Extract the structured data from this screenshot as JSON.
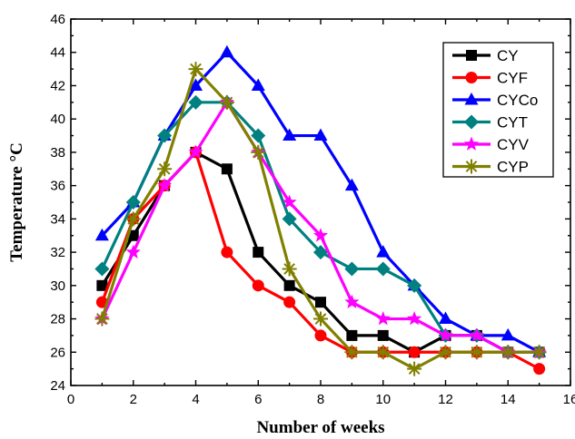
{
  "chart_data": {
    "type": "line",
    "xlabel": "Number of weeks",
    "ylabel": "Temperature °C",
    "xlim": [
      0,
      16
    ],
    "ylim": [
      24,
      46
    ],
    "xticks": [
      0,
      2,
      4,
      6,
      8,
      10,
      12,
      14,
      16
    ],
    "yticks": [
      24,
      26,
      28,
      30,
      32,
      34,
      36,
      38,
      40,
      42,
      44,
      46
    ],
    "grid": false,
    "legend_position": "top-right",
    "x": [
      1,
      2,
      3,
      4,
      5,
      6,
      7,
      8,
      9,
      10,
      11,
      12,
      13,
      14,
      15
    ],
    "series": [
      {
        "name": "CY",
        "color": "#000000",
        "marker": "square",
        "values": [
          30,
          33,
          36,
          38,
          37,
          32,
          30,
          29,
          27,
          27,
          26,
          27,
          27,
          26,
          26
        ]
      },
      {
        "name": "CYF",
        "color": "#ff0000",
        "marker": "circle",
        "values": [
          29,
          34,
          36,
          38,
          32,
          30,
          29,
          27,
          26,
          26,
          26,
          26,
          26,
          26,
          25
        ]
      },
      {
        "name": "CYCo",
        "color": "#0000ff",
        "marker": "triangle",
        "values": [
          33,
          35,
          39,
          42,
          44,
          42,
          39,
          39,
          36,
          32,
          30,
          28,
          27,
          27,
          26
        ]
      },
      {
        "name": "CYT",
        "color": "#008080",
        "marker": "diamond",
        "values": [
          31,
          35,
          39,
          41,
          41,
          39,
          34,
          32,
          31,
          31,
          30,
          27,
          27,
          26,
          26
        ]
      },
      {
        "name": "CYV",
        "color": "#ff00ff",
        "marker": "star",
        "values": [
          28,
          32,
          36,
          38,
          41,
          38,
          35,
          33,
          29,
          28,
          28,
          27,
          27,
          26,
          26
        ]
      },
      {
        "name": "CYP",
        "color": "#808000",
        "marker": "asterisk",
        "values": [
          28,
          34,
          37,
          43,
          41,
          38,
          31,
          28,
          26,
          26,
          25,
          26,
          26,
          26,
          26
        ]
      }
    ]
  }
}
